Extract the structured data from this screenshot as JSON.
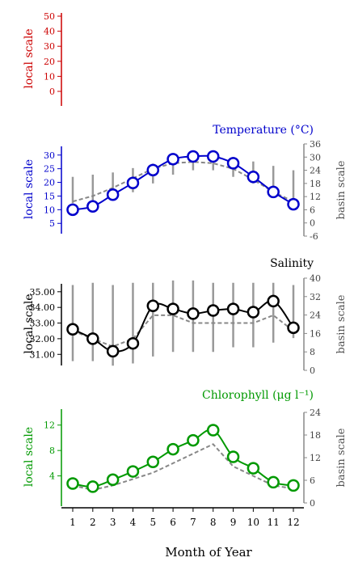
{
  "x_axis": {
    "label": "Month of Year",
    "ticks": [
      "1",
      "2",
      "3",
      "4",
      "5",
      "6",
      "7",
      "8",
      "9",
      "10",
      "11",
      "12"
    ]
  },
  "chart_data": [
    {
      "type": "line",
      "key": "empty",
      "title": "",
      "local_axis": {
        "label": "local scale",
        "range": [
          0,
          50
        ],
        "ticks": [
          "0",
          "10",
          "20",
          "30",
          "40",
          "50"
        ],
        "color": "#cc0000"
      },
      "basin_axis": null,
      "series": []
    },
    {
      "type": "line",
      "key": "temperature",
      "title": "Temperature (°C)",
      "color": "#0000cc",
      "local_axis": {
        "label": "local scale",
        "range": [
          3,
          32
        ],
        "ticks": [
          "5",
          "10",
          "15",
          "20",
          "25",
          "30"
        ]
      },
      "basin_axis": {
        "label": "basin scale",
        "range": [
          -6,
          36
        ],
        "ticks": [
          "-6",
          "0",
          "6",
          "12",
          "18",
          "24",
          "30",
          "36"
        ]
      },
      "local_series": {
        "x": [
          1,
          2,
          3,
          4,
          5,
          6,
          7,
          8,
          9,
          10,
          11,
          12
        ],
        "y": [
          10.0,
          11.2,
          15.5,
          19.8,
          24.5,
          28.5,
          29.5,
          29.5,
          27.0,
          22.0,
          16.5,
          12.0
        ]
      },
      "basin_median": {
        "x": [
          1,
          2,
          3,
          4,
          5,
          6,
          7,
          8,
          9,
          10,
          11,
          12
        ],
        "y": [
          13.0,
          15.0,
          18.0,
          21.5,
          25.0,
          27.0,
          27.5,
          27.0,
          25.0,
          21.0,
          16.5,
          13.0
        ]
      },
      "basin_range": {
        "low": [
          9,
          10,
          12,
          14,
          18,
          22,
          24,
          24,
          21,
          18,
          12,
          8
        ],
        "high": [
          21,
          22,
          23,
          25,
          27,
          31,
          33,
          32,
          30,
          28,
          26,
          24
        ]
      }
    },
    {
      "type": "line",
      "key": "salinity",
      "title": "Salinity",
      "color": "#000000",
      "local_axis": {
        "label": "local scale",
        "range": [
          30.6,
          35.3
        ],
        "ticks": [
          "31.00",
          "32.00",
          "33.00",
          "34.00",
          "35.00"
        ]
      },
      "basin_axis": {
        "label": "basin scale",
        "range": [
          0,
          40
        ],
        "ticks": [
          "0",
          "8",
          "16",
          "24",
          "32",
          "40"
        ]
      },
      "local_series": {
        "x": [
          1,
          2,
          3,
          4,
          5,
          6,
          7,
          8,
          9,
          10,
          11,
          12
        ],
        "y": [
          32.6,
          32.0,
          31.2,
          31.7,
          34.1,
          33.9,
          33.6,
          33.8,
          33.9,
          33.7,
          34.4,
          32.7
        ]
      },
      "basin_median": {
        "x": [
          1,
          2,
          3,
          4,
          5,
          6,
          7,
          8,
          9,
          10,
          11,
          12
        ],
        "y": [
          32.5,
          32.0,
          31.5,
          32.0,
          33.5,
          33.5,
          33.0,
          33.0,
          33.0,
          33.0,
          33.5,
          32.5
        ]
      },
      "basin_range": {
        "low": [
          4,
          4,
          2,
          3,
          6,
          8,
          8,
          8,
          10,
          10,
          12,
          14
        ],
        "high": [
          37,
          38,
          37,
          38,
          38,
          39,
          39,
          38,
          38,
          38,
          38,
          37
        ]
      }
    },
    {
      "type": "line",
      "key": "chlorophyll",
      "title": "Chlorophyll (μg l⁻¹)",
      "color": "#009900",
      "local_axis": {
        "label": "local scale",
        "range": [
          0,
          14
        ],
        "ticks": [
          "4",
          "8",
          "12"
        ]
      },
      "basin_axis": {
        "label": "basin scale",
        "range": [
          0,
          24
        ],
        "ticks": [
          "0",
          "6",
          "12",
          "18",
          "24"
        ]
      },
      "local_series": {
        "x": [
          1,
          2,
          3,
          4,
          5,
          6,
          7,
          8,
          9,
          10,
          11,
          12
        ],
        "y": [
          2.8,
          2.3,
          3.4,
          4.7,
          6.2,
          8.2,
          9.6,
          11.2,
          7.0,
          5.2,
          3.0,
          2.5
        ]
      },
      "basin_median": {
        "x": [
          1,
          2,
          3,
          4,
          5,
          6,
          7,
          8,
          9,
          10,
          11,
          12
        ],
        "y": [
          2.5,
          1.8,
          2.5,
          3.5,
          4.5,
          6.0,
          7.5,
          9.0,
          5.5,
          4.0,
          2.5,
          2.0
        ]
      }
    }
  ]
}
